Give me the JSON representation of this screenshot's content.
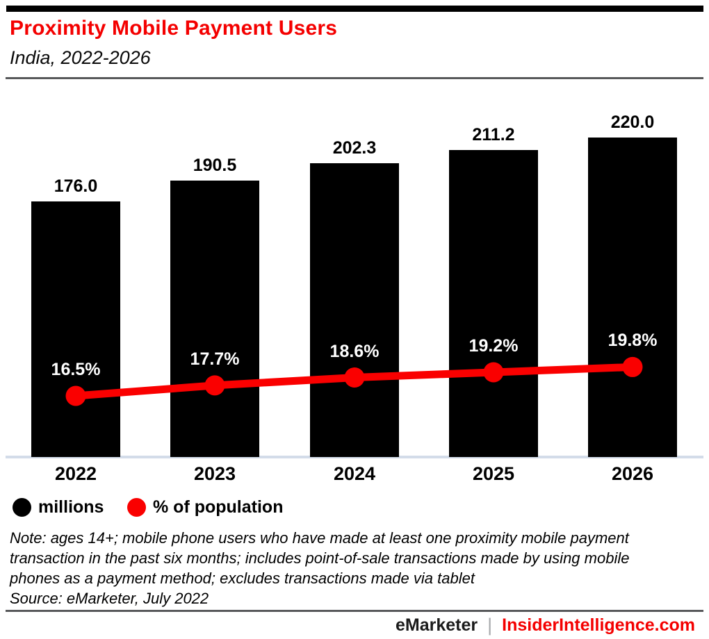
{
  "header": {
    "title": "Proximity Mobile Payment Users",
    "subtitle": "India, 2022-2026"
  },
  "chart_data": {
    "type": "combo",
    "title": "Proximity Mobile Payment Users",
    "subtitle": "India, 2022-2026",
    "categories": [
      "2022",
      "2023",
      "2024",
      "2025",
      "2026"
    ],
    "series": [
      {
        "name": "millions",
        "type": "bar",
        "color": "#000000",
        "values": [
          176.0,
          190.5,
          202.3,
          211.2,
          220.0
        ],
        "labels": [
          "176.0",
          "190.5",
          "202.3",
          "211.2",
          "220.0"
        ]
      },
      {
        "name": "% of population",
        "type": "line",
        "color": "#fa0000",
        "values": [
          16.5,
          17.7,
          18.6,
          19.2,
          19.8
        ],
        "labels": [
          "16.5%",
          "17.7%",
          "18.6%",
          "19.2%",
          "19.8%"
        ]
      }
    ],
    "ylim_bar": [
      0,
      220
    ],
    "grid": false,
    "legend_position": "bottom-left"
  },
  "legend": {
    "items": [
      {
        "label": "millions",
        "color": "#000000"
      },
      {
        "label": "% of population",
        "color": "#fa0000"
      }
    ]
  },
  "notes": {
    "line1": "Note: ages 14+; mobile phone users who have made at least one proximity mobile payment",
    "line2": "transaction in the past six months; includes point-of-sale transactions made by using mobile",
    "line3": "phones as a payment method; excludes transactions made via tablet",
    "source": "Source: eMarketer, July 2022"
  },
  "footer": {
    "brand": "eMarketer",
    "separator": "|",
    "site": "InsiderIntelligence.com"
  },
  "colors": {
    "accent_red": "#f40000",
    "line_red": "#fa0000",
    "bar_black": "#000000",
    "axis_line": "#d3dce9",
    "rule_gray": "#58595b"
  }
}
